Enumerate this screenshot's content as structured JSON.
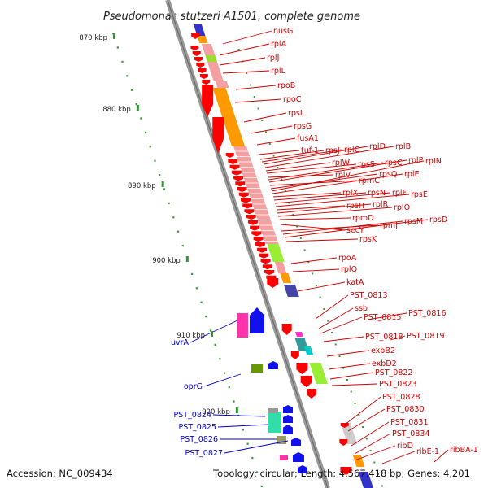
{
  "title": "Pseudomonas stutzeri A1501, complete genome",
  "footer": {
    "accession": "Accession: NC_009434",
    "topology": "Topology: circular; Length: 4,567,418 bp; Genes: 4,201"
  },
  "scale_labels": [
    "870 kbp",
    "880 kbp",
    "890 kbp",
    "900 kbp",
    "910 kbp",
    "920 kbp"
  ],
  "colors": {
    "forward_label": "#cc0000",
    "reverse_label": "#0000cc",
    "backbone": "#999999",
    "tick": "#339933"
  },
  "forward_genes": [
    "nusG",
    "rplA",
    "rplJ",
    "rplL",
    "rpoB",
    "rpoC",
    "rpsL",
    "rpsG",
    "fusA1",
    "tuf-1",
    "rpsJ",
    "rplC",
    "rplD",
    "rplB",
    "rplW",
    "rpsS",
    "rplV",
    "rpsC",
    "rplP",
    "rpmC",
    "rpsQ",
    "rpIN",
    "rplE",
    "rplX",
    "rpsN",
    "rplF",
    "rpsE",
    "rpsH",
    "rplR",
    "rplO",
    "rpmD",
    "secY",
    "rpmJ",
    "rpsM",
    "rpsD",
    "rpsK",
    "rpoA",
    "rplQ",
    "katA",
    "PST_0813",
    "ssb",
    "PST_0815",
    "PST_0816",
    "PST_0818",
    "PST_0819",
    "exbB2",
    "exbD2",
    "PST_0822",
    "PST_0823",
    "PST_0828",
    "PST_0830",
    "PST_0831",
    "PST_0834",
    "ribD",
    "ribE-1",
    "ribBA-1"
  ],
  "reverse_genes": [
    "uvrA",
    "oprG",
    "PST_0824",
    "PST_0825",
    "PST_0826",
    "PST_0827"
  ]
}
